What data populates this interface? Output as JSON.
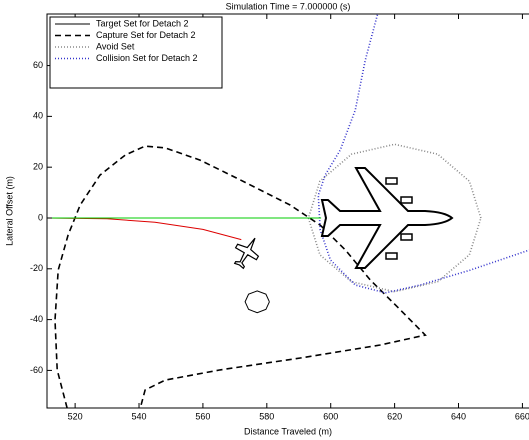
{
  "chart_data": {
    "type": "line",
    "title": "Simulation Time = 7.000000 (s)",
    "xlabel": "Distance Traveled (m)",
    "ylabel": "Lateral Offset (m)",
    "xlim": [
      511.2,
      663
    ],
    "ylim": [
      -74.8,
      80.3
    ],
    "xticks": [
      520,
      540,
      560,
      580,
      600,
      620,
      640,
      660
    ],
    "yticks": [
      -60,
      -40,
      -20,
      0,
      20,
      40,
      60
    ],
    "legend": "upper left",
    "series": [
      {
        "name": "Target Set for Detach 2",
        "color": "#000000",
        "style": "solid",
        "x": [
          580.8,
          579.7,
          577,
          574.3,
          573.2,
          574.3,
          577,
          579.7,
          580.8
        ],
        "values": [
          -33,
          -30,
          -28.7,
          -30,
          -33,
          -36,
          -37.3,
          -36,
          -33
        ]
      },
      {
        "name": "Capture Set for Detach 2",
        "color": "#000000",
        "style": "dashed",
        "x": [
          517.5,
          514.4,
          513.7,
          514.7,
          517.8,
          521.6,
          527.8,
          535.7,
          541.9,
          548.2,
          559.1,
          571.7,
          587.3,
          596.7,
          604.6,
          612.4,
          621.8,
          629.6,
          615.5,
          590.5,
          565.4,
          548.2,
          541.9,
          540.4
        ],
        "values": [
          -74.8,
          -59.8,
          -40.2,
          -20.5,
          -6.7,
          5.1,
          16.9,
          24.8,
          28.3,
          27.6,
          22.8,
          15,
          5.1,
          -2.8,
          -12.6,
          -24.4,
          -36.2,
          -46.1,
          -50,
          -55.1,
          -59.8,
          -63.8,
          -67.7,
          -74.8
        ]
      },
      {
        "name": "Avoid Set",
        "color": "#888888",
        "style": "dotted",
        "x": [
          647,
          643.4,
          633.5,
          620,
          606.5,
          596.6,
          593,
          596.6,
          606.5,
          620,
          633.5,
          643.4,
          647
        ],
        "values": [
          0,
          14.5,
          25.1,
          29,
          25.1,
          14.5,
          0,
          -14.5,
          -25.1,
          -29,
          -25.1,
          -14.5,
          0
        ]
      },
      {
        "name": "Collision Set for Detach 2",
        "color": "#3333cc",
        "style": "dotted",
        "x": [
          614.6,
          610.8,
          607.7,
          603,
          598.3,
          596.1,
          596.7,
          599.9,
          607.7,
          617.1,
          628,
          643.7,
          662.2
        ],
        "values": [
          80,
          62,
          42.5,
          26.8,
          17,
          9,
          -4.7,
          -16.5,
          -26.4,
          -29.5,
          -26.4,
          -20.5,
          -12.6
        ]
      },
      {
        "color": "#dd0000",
        "style": "solid",
        "x": [
          511.2,
          530,
          545,
          560,
          572
        ],
        "values": [
          0,
          -0.3,
          -1.7,
          -4.5,
          -8.5
        ]
      },
      {
        "color": "#00cc00",
        "style": "solid",
        "x": [
          511.2,
          597
        ],
        "values": [
          0,
          0
        ]
      }
    ]
  }
}
